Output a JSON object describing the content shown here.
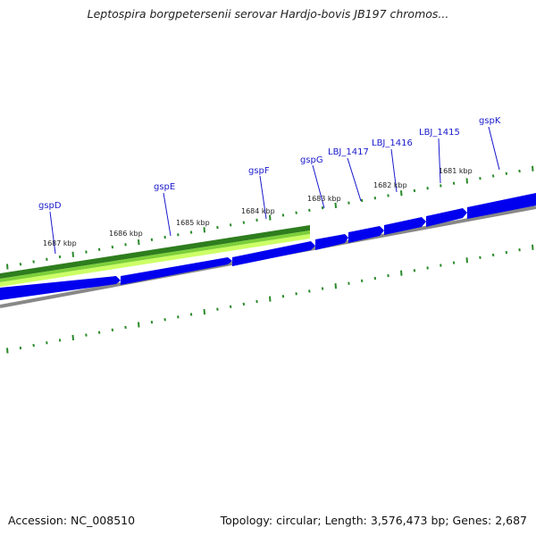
{
  "title": "Leptospira borgpetersenii serovar Hardjo-bovis JB197 chromos...",
  "footer": {
    "accession": "Accession: NC_008510",
    "summary": "Topology: circular; Length: 3,576,473 bp; Genes: 2,687"
  },
  "colors": {
    "gene_forward": "#0000ee",
    "backbone": "#888888",
    "tick": "#2a8a2a",
    "label": "#1a1acc",
    "highlight_dark": "#2e7d1e",
    "highlight_mid": "#7ccf3a",
    "highlight_light": "#ccff66"
  },
  "ruler_labels": [
    {
      "text": "1687 kbp"
    },
    {
      "text": "1686 kbp"
    },
    {
      "text": "1685 kbp"
    },
    {
      "text": "1684 kbp"
    },
    {
      "text": "1683 kbp"
    },
    {
      "text": "1682 kbp"
    },
    {
      "text": "1681 kbp"
    }
  ],
  "genes": [
    {
      "name": "gspD"
    },
    {
      "name": "gspE"
    },
    {
      "name": "gspF"
    },
    {
      "name": "gspG"
    },
    {
      "name": "LBJ_1417"
    },
    {
      "name": "LBJ_1416"
    },
    {
      "name": "LBJ_1415"
    },
    {
      "name": "gspK"
    }
  ]
}
